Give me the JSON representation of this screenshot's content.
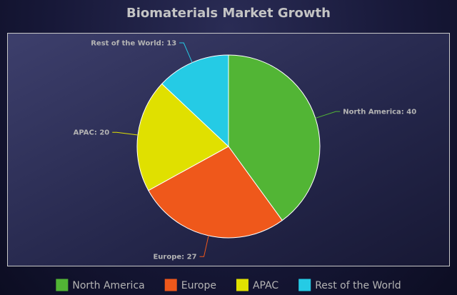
{
  "chart_data": {
    "type": "pie",
    "title": "Biomaterials Market Growth",
    "categories": [
      "North America",
      "Europe",
      "APAC",
      "Rest of the World"
    ],
    "values": [
      40,
      27,
      20,
      13
    ],
    "colors": [
      "#52b535",
      "#ef581b",
      "#e0e000",
      "#25cbe5"
    ],
    "slice_labels": [
      "North America: 40",
      "Europe: 27",
      "APAC: 20",
      "Rest of the World: 13"
    ],
    "legend_placement": "bottom",
    "grid": false
  },
  "style": {
    "title_color": "#c4c4c4",
    "label_color": "#b4b4b4",
    "legend_text_color": "#b4b4b4",
    "plot_border_color": "#c8c8c8",
    "slice_stroke_color": "#ffffff"
  }
}
